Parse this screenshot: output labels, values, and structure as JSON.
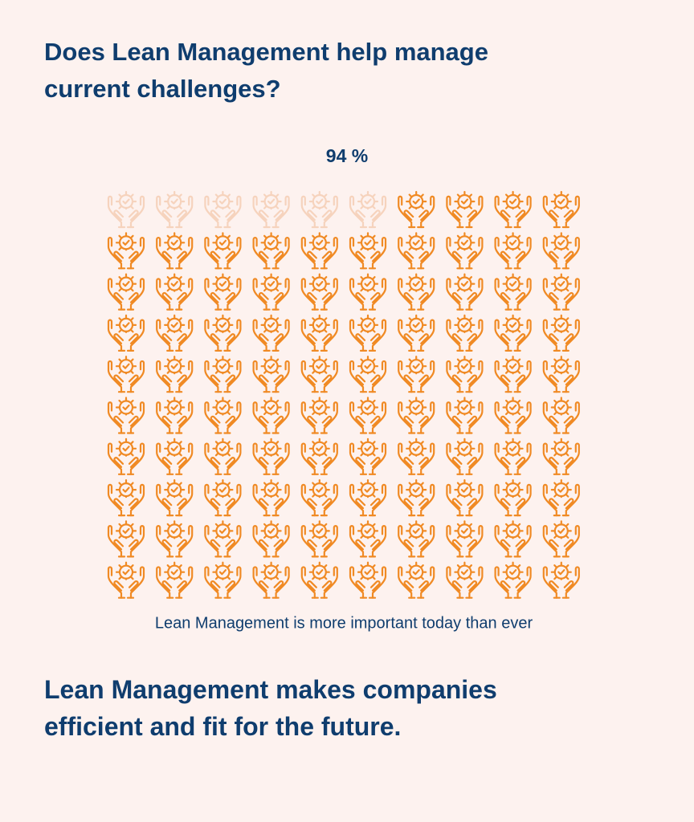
{
  "chart_data": {
    "type": "waffle",
    "title": "Does Lean Management help manage current challenges?",
    "values": [
      94
    ],
    "value_labels": [
      "94 %"
    ],
    "rows": 10,
    "columns": 10,
    "color": "#f08a24",
    "empty_color": "#f6d3bd",
    "caption": "Lean Management is more important today than ever",
    "conclusion": "Lean Management makes companies efficient and fit for the future."
  }
}
